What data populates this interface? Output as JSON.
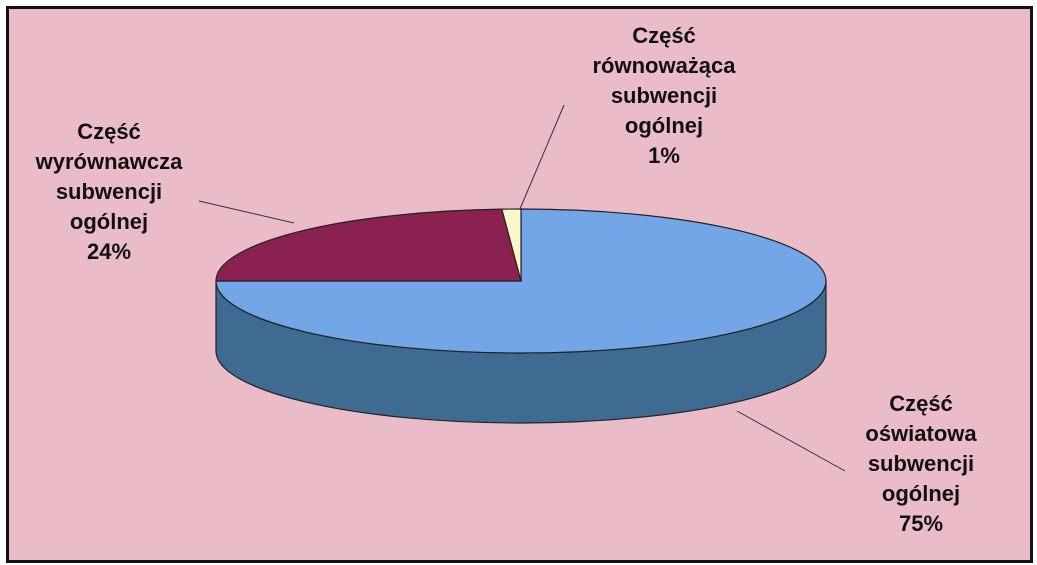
{
  "chart_data": {
    "type": "pie",
    "categories": [
      "Część oświatowa subwencji ogólnej",
      "Część wyrównawcza subwencji ogólnej",
      "Część równoważąca subwencji ogólnej"
    ],
    "values": [
      75,
      24,
      1
    ],
    "value_labels": [
      "75%",
      "24%",
      "1%"
    ],
    "colors": [
      "#72a6e6",
      "#8a2150",
      "#fbf7c8"
    ],
    "side_colors": [
      "#3f6b92",
      "#5a1235",
      "#c9c59a"
    ]
  }
}
